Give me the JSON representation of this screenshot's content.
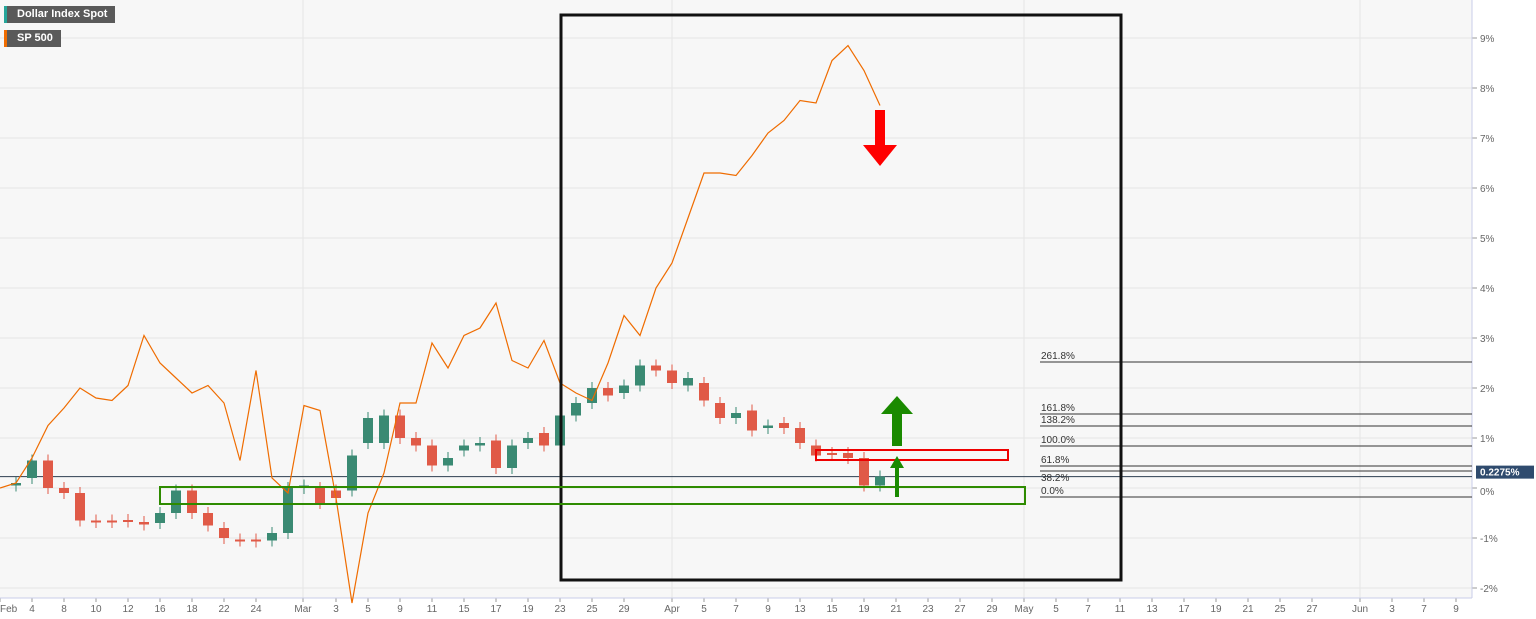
{
  "legend": [
    {
      "label": "Dollar Index Spot",
      "color": "#26a69a"
    },
    {
      "label": "SP 500",
      "color": "#ef6c00"
    }
  ],
  "current_value_label": "0.2275%",
  "chart_data": {
    "type": "candlestick+line",
    "yaxis": {
      "ticks": [
        -2,
        -1,
        0,
        1,
        2,
        3,
        4,
        5,
        6,
        7,
        8,
        9
      ],
      "unit": "%",
      "range": [
        -2.2,
        9.7
      ]
    },
    "xaxis": {
      "ticks": [
        "Feb",
        "4",
        "8",
        "10",
        "12",
        "16",
        "18",
        "22",
        "24",
        "Mar",
        "3",
        "5",
        "9",
        "11",
        "15",
        "17",
        "19",
        "23",
        "25",
        "29",
        "Apr",
        "5",
        "7",
        "9",
        "13",
        "15",
        "19",
        "21",
        "23",
        "27",
        "29",
        "May",
        "5",
        "7",
        "11",
        "13",
        "17",
        "19",
        "21",
        "25",
        "27",
        "Jun",
        "3",
        "7",
        "9"
      ]
    },
    "dollar_index_candles": [
      [
        0.05,
        0.1
      ],
      [
        0.2,
        0.55
      ],
      [
        0.55,
        0
      ],
      [
        0,
        -0.1
      ],
      [
        -0.1,
        -0.65
      ],
      [
        -0.65,
        -0.68
      ],
      [
        -0.65,
        -0.68
      ],
      [
        -0.64,
        -0.67
      ],
      [
        -0.68,
        -0.73
      ],
      [
        -0.7,
        -0.5
      ],
      [
        -0.5,
        -0.05
      ],
      [
        -0.05,
        -0.5
      ],
      [
        -0.5,
        -0.75
      ],
      [
        -0.8,
        -1.0
      ],
      [
        -1.03,
        -1.05
      ],
      [
        -1.03,
        -1.07
      ],
      [
        -1.05,
        -0.9
      ],
      [
        -0.9,
        0
      ],
      [
        0,
        0.05
      ],
      [
        0,
        -0.3
      ],
      [
        -0.05,
        -0.2
      ],
      [
        -0.05,
        0.65
      ],
      [
        0.9,
        1.4
      ],
      [
        0.9,
        1.45
      ],
      [
        1.45,
        1.0
      ],
      [
        1.0,
        0.85
      ],
      [
        0.85,
        0.45
      ],
      [
        0.45,
        0.6
      ],
      [
        0.75,
        0.85
      ],
      [
        0.85,
        0.9
      ],
      [
        0.95,
        0.4
      ],
      [
        0.4,
        0.85
      ],
      [
        0.9,
        1.0
      ],
      [
        1.1,
        0.85
      ],
      [
        0.85,
        1.45
      ],
      [
        1.45,
        1.7
      ],
      [
        1.7,
        2.0
      ],
      [
        2.0,
        1.85
      ],
      [
        1.9,
        2.05
      ],
      [
        2.05,
        2.45
      ],
      [
        2.45,
        2.35
      ],
      [
        2.35,
        2.1
      ],
      [
        2.05,
        2.2
      ],
      [
        2.1,
        1.75
      ],
      [
        1.7,
        1.4
      ],
      [
        1.4,
        1.5
      ],
      [
        1.55,
        1.15
      ],
      [
        1.2,
        1.25
      ],
      [
        1.3,
        1.2
      ],
      [
        1.2,
        0.9
      ],
      [
        0.85,
        0.65
      ],
      [
        0.7,
        0.68
      ],
      [
        0.7,
        0.6
      ],
      [
        0.6,
        0.05
      ],
      [
        0.05,
        0.23
      ]
    ],
    "sp500_line": [
      0,
      0.1,
      0.6,
      1.25,
      1.6,
      2,
      1.8,
      1.75,
      2.05,
      3.05,
      2.5,
      2.2,
      1.9,
      2.05,
      1.7,
      0.55,
      2.35,
      0.2,
      -0.1,
      1.65,
      1.55,
      -0.2,
      -2.3,
      -0.5,
      0.3,
      1.7,
      1.7,
      2.9,
      2.4,
      3.05,
      3.2,
      3.7,
      2.55,
      2.4,
      2.95,
      2.1,
      1.9,
      1.75,
      2.5,
      3.45,
      3.05,
      4,
      4.5,
      5.4,
      6.3,
      6.3,
      6.25,
      6.65,
      7.1,
      7.35,
      7.75,
      7.7,
      8.55,
      8.85,
      8.35,
      7.65
    ],
    "fibonacci": [
      {
        "label": "261.8%",
        "value": 2.52
      },
      {
        "label": "161.8%",
        "value": 1.48
      },
      {
        "label": "138.2%",
        "value": 1.24
      },
      {
        "label": "100.0%",
        "value": 0.84
      },
      {
        "label": "61.8%",
        "value": 0.44
      },
      {
        "label": "38.2%",
        "value": 0.34
      },
      {
        "label": "0.0%",
        "value": -0.18
      }
    ],
    "current_value": 0.2275
  }
}
